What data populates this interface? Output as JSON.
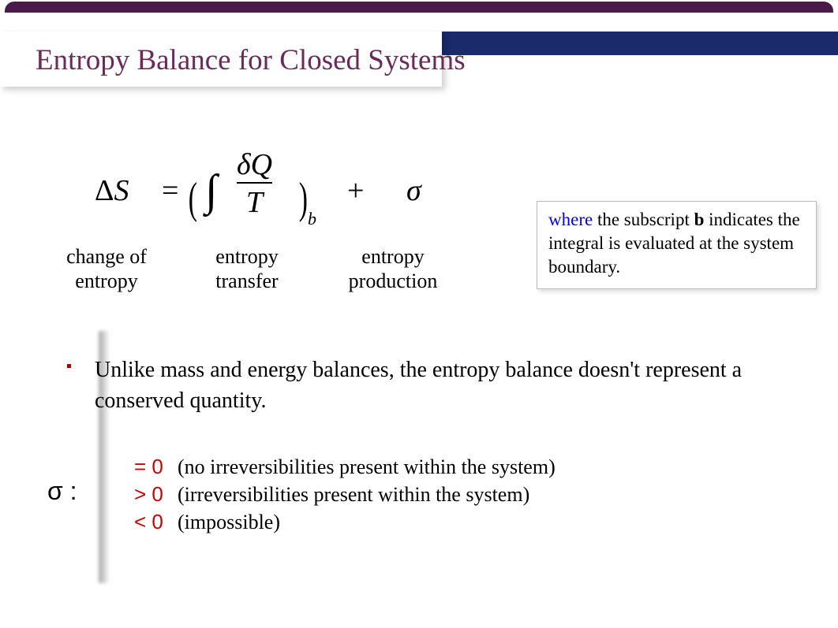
{
  "colors": {
    "top_border": "#4a1a4a",
    "band": "#1a2a6a",
    "title": "#6a2a5a",
    "bullet_dot": "#aa0000",
    "cond_text": "#cc0000",
    "where_text": "#0000ee",
    "background": "#ffffff"
  },
  "title": "Entropy Balance for Closed Systems",
  "equation": {
    "delta_s": "ΔS",
    "equals": "=",
    "lparen": "(",
    "integral": "∫",
    "numerator": "δQ",
    "denominator": "T",
    "rparen": ")",
    "subscript": "b",
    "plus": "+",
    "sigma": "σ"
  },
  "under_labels": {
    "l1_line1": "change of",
    "l1_line2": "entropy",
    "l2_line1": "entropy",
    "l2_line2": "transfer",
    "l3_line1": "entropy",
    "l3_line2": "production"
  },
  "note": {
    "where": "where",
    "text1": " the subscript ",
    "b": "b",
    "text2": " indicates the integral is evaluated at the system boundary."
  },
  "bullet": "Unlike mass and energy balances, the entropy balance doesn't represent a conserved quantity.",
  "sigma_label": "σ :",
  "cases": [
    {
      "cond": "= 0",
      "desc": "(no irreversibilities present within the system)"
    },
    {
      "cond": "> 0",
      "desc": "(irreversibilities present within the system)"
    },
    {
      "cond": "< 0",
      "desc": "(impossible)"
    }
  ]
}
